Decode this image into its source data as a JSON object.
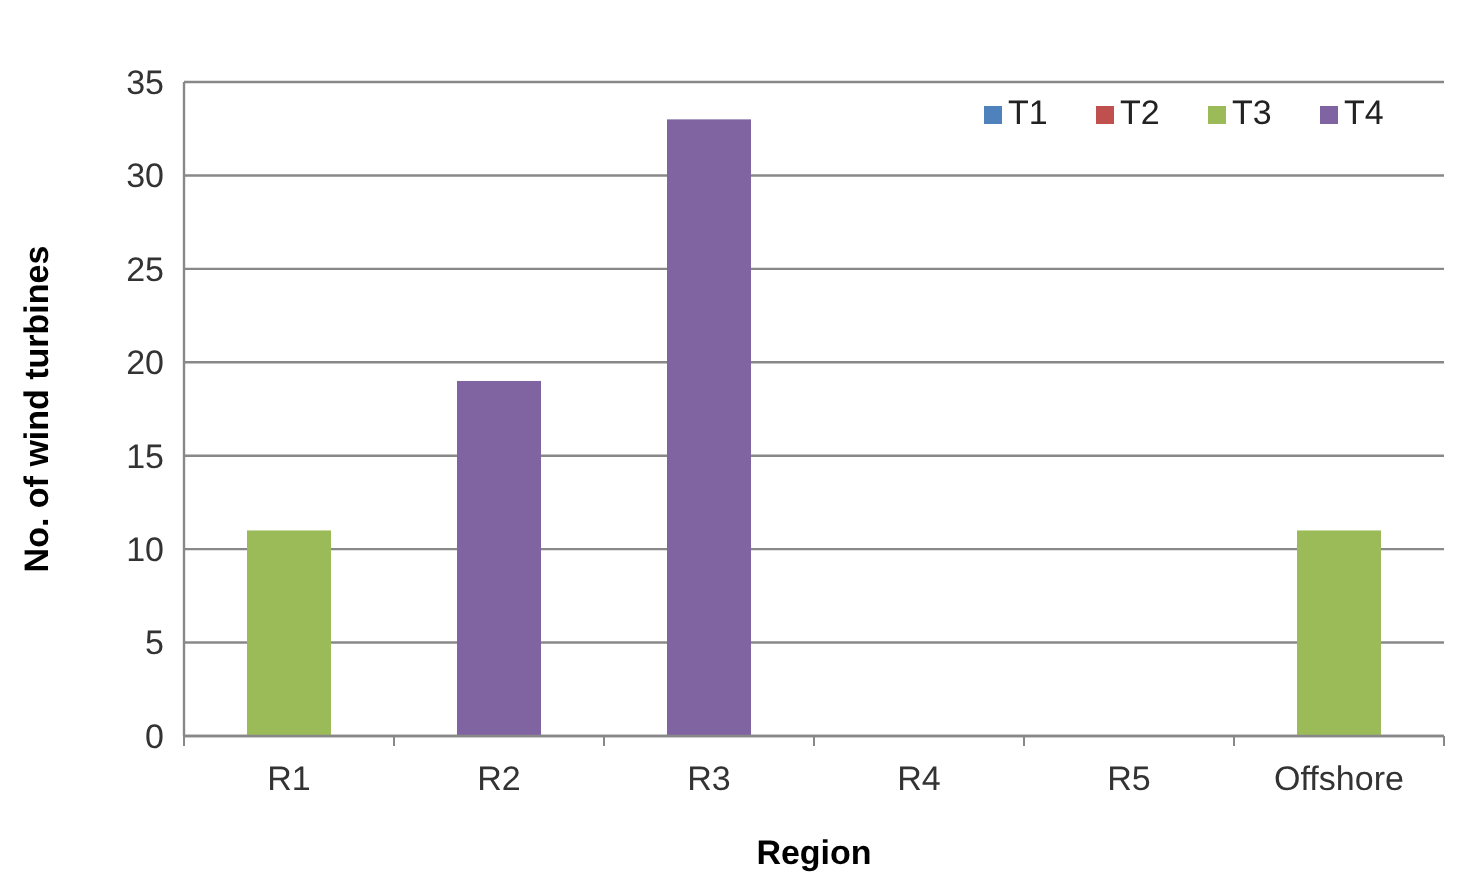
{
  "chart_data": {
    "type": "bar",
    "stacked": true,
    "xlabel": "Region",
    "ylabel": "No. of wind turbines",
    "categories": [
      "R1",
      "R2",
      "R3",
      "R4",
      "R5",
      "Offshore"
    ],
    "series": [
      {
        "name": "T1",
        "color": "#4f81bd",
        "values": [
          0,
          0,
          0,
          0,
          0,
          0
        ]
      },
      {
        "name": "T2",
        "color": "#c0504d",
        "values": [
          0,
          0,
          0,
          0,
          0,
          0
        ]
      },
      {
        "name": "T3",
        "color": "#9bbb59",
        "values": [
          11,
          0,
          0,
          0,
          0,
          11
        ]
      },
      {
        "name": "T4",
        "color": "#8064a2",
        "values": [
          0,
          19,
          33,
          0,
          0,
          0
        ]
      }
    ],
    "ylim": [
      0,
      35
    ],
    "yticks": [
      0,
      5,
      10,
      15,
      20,
      25,
      30,
      35
    ],
    "grid": "y",
    "legend": "top right"
  }
}
